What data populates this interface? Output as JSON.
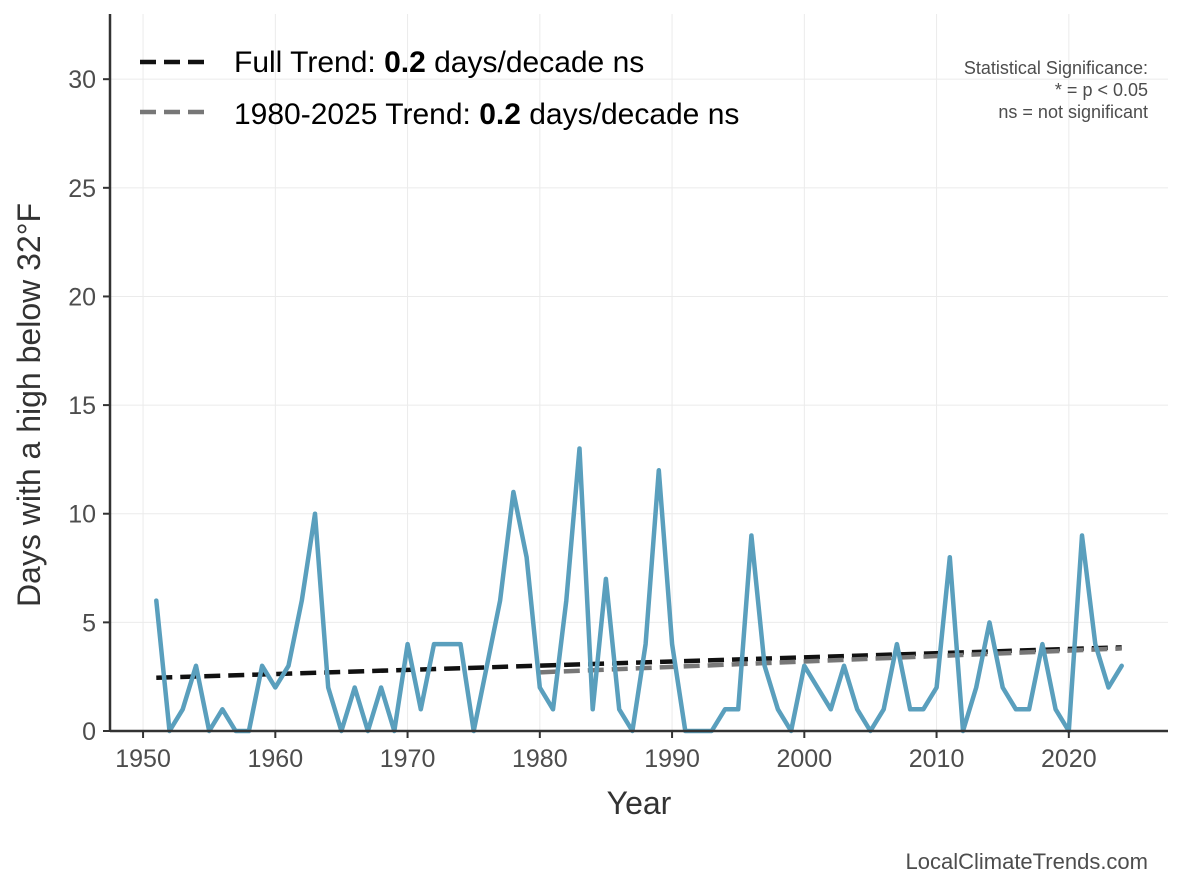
{
  "chart_data": {
    "type": "line",
    "xlabel": "Year",
    "ylabel": "Days with a high below 32°F",
    "xlim": [
      1947.5,
      2027.5
    ],
    "ylim": [
      0,
      33
    ],
    "x_ticks": [
      1950,
      1960,
      1970,
      1980,
      1990,
      2000,
      2010,
      2020
    ],
    "y_ticks": [
      0,
      5,
      10,
      15,
      20,
      25,
      30
    ],
    "grid": true,
    "series": [
      {
        "color": "#5a9fbd",
        "x": [
          1951,
          1952,
          1953,
          1954,
          1955,
          1956,
          1957,
          1958,
          1959,
          1960,
          1961,
          1962,
          1963,
          1964,
          1965,
          1966,
          1967,
          1968,
          1969,
          1970,
          1971,
          1972,
          1973,
          1974,
          1975,
          1976,
          1977,
          1978,
          1979,
          1980,
          1981,
          1982,
          1983,
          1984,
          1985,
          1986,
          1987,
          1988,
          1989,
          1990,
          1991,
          1992,
          1993,
          1994,
          1995,
          1996,
          1997,
          1998,
          1999,
          2000,
          2001,
          2002,
          2003,
          2004,
          2005,
          2006,
          2007,
          2008,
          2009,
          2010,
          2011,
          2012,
          2013,
          2014,
          2015,
          2016,
          2017,
          2018,
          2019,
          2020,
          2021,
          2022,
          2023,
          2024
        ],
        "values": [
          6,
          0,
          1,
          3,
          0,
          1,
          0,
          0,
          3,
          2,
          3,
          6,
          10,
          2,
          0,
          2,
          0,
          2,
          0,
          4,
          1,
          4,
          4,
          4,
          0,
          3,
          6,
          11,
          8,
          2,
          1,
          6,
          13,
          1,
          7,
          1,
          0,
          4,
          12,
          4,
          0,
          0,
          0,
          1,
          1,
          9,
          3,
          1,
          0,
          3,
          2,
          1,
          3,
          1,
          0,
          1,
          4,
          1,
          1,
          2,
          8,
          0,
          2,
          5,
          2,
          1,
          1,
          4,
          1,
          0,
          9,
          4,
          2,
          3
        ]
      }
    ],
    "trend_lines": [
      {
        "label": "Full Trend: ",
        "value": "0.2",
        "suffix": " days/decade ns",
        "color": "#111111",
        "x": [
          1951,
          2024
        ],
        "y": [
          2.45,
          3.85
        ]
      },
      {
        "label": "1980-2025 Trend: ",
        "value": "0.2",
        "suffix": " days/decade ns",
        "color": "#777777",
        "x": [
          1980,
          2024
        ],
        "y": [
          2.7,
          3.8
        ]
      }
    ],
    "legend_position": "top-left",
    "significance_note": [
      "Statistical Significance:",
      "* = p < 0.05",
      "ns = not significant"
    ],
    "credit": "LocalClimateTrends.com"
  }
}
